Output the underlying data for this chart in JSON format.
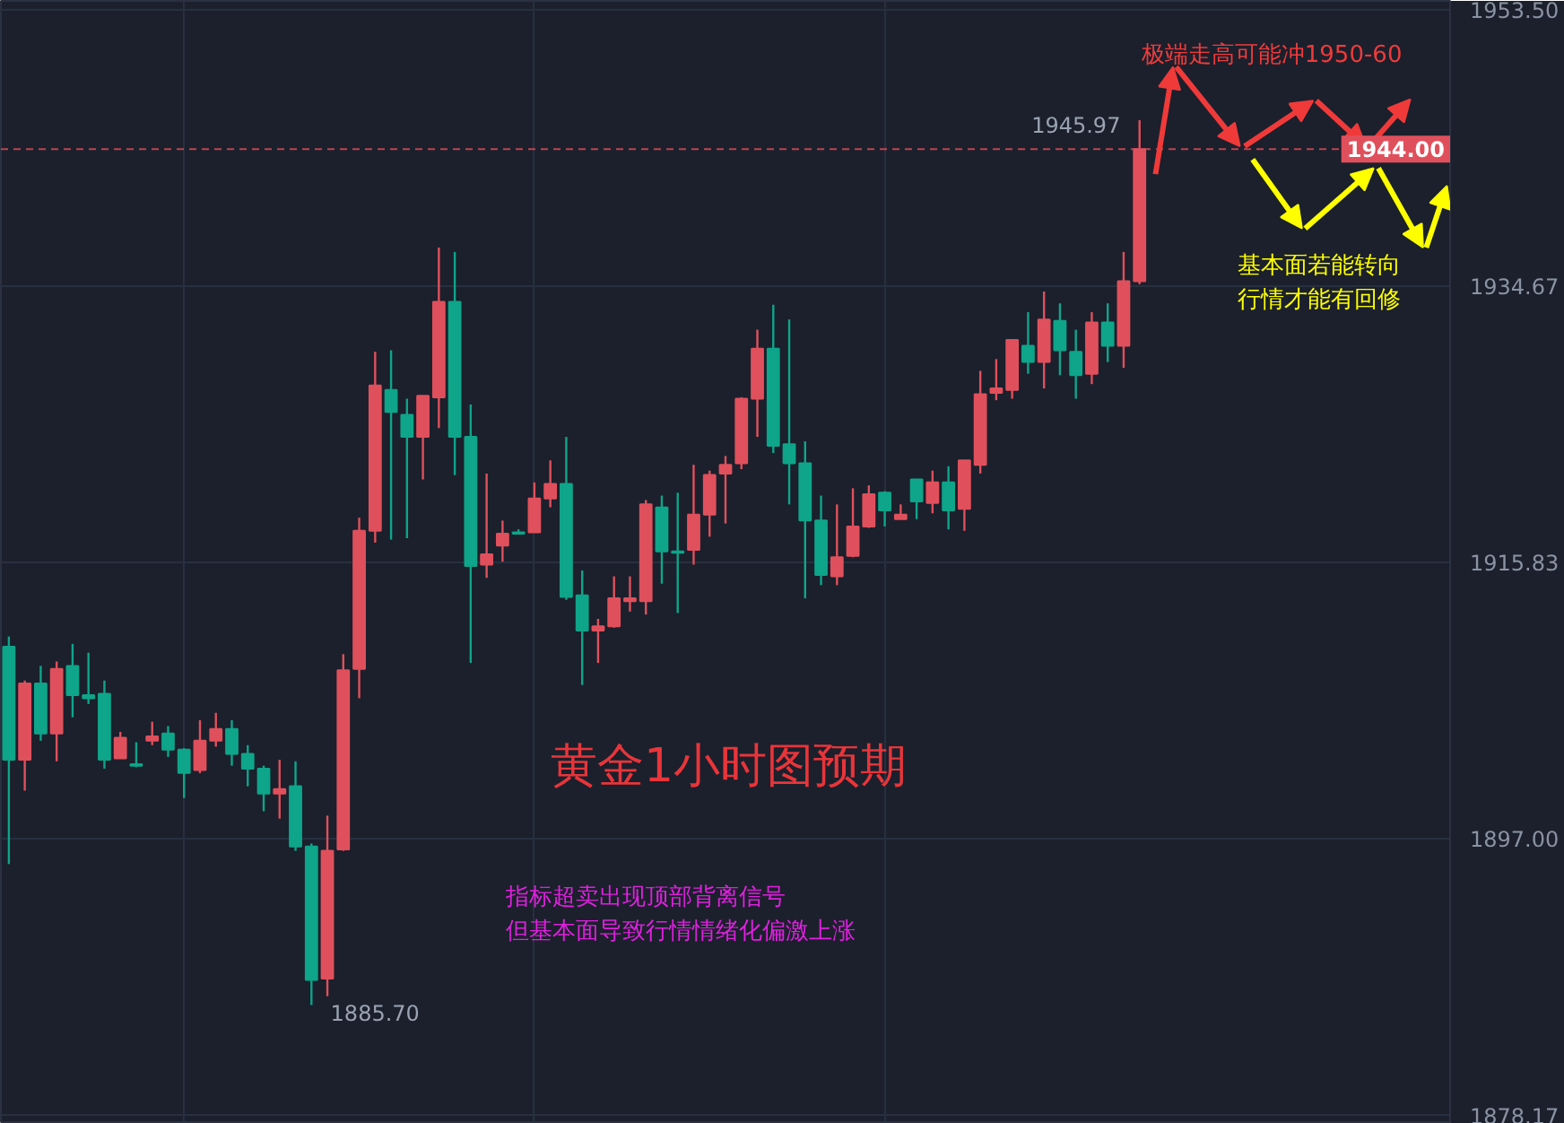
{
  "chart_data": {
    "type": "candlestick",
    "title": "黄金1小时图预期",
    "categories": [
      null,
      null,
      null,
      null,
      null,
      null,
      null,
      null,
      null,
      null,
      null,
      null,
      null,
      null,
      null,
      null,
      null,
      null,
      null,
      null,
      null,
      null,
      null,
      null,
      null,
      null,
      null,
      null,
      null,
      null,
      null,
      null,
      null,
      null,
      null,
      null,
      null,
      null,
      null,
      null,
      null,
      null,
      null,
      null,
      null,
      null,
      null,
      null,
      null,
      null,
      null,
      null,
      null,
      null,
      null,
      null,
      null,
      null,
      null,
      null,
      null,
      null,
      null,
      null,
      null,
      null,
      null,
      null,
      null,
      null,
      null,
      null,
      null,
      null,
      null,
      null,
      null,
      null,
      null,
      null,
      null,
      null,
      null,
      null,
      null,
      null,
      null,
      null,
      null,
      null,
      null
    ],
    "ohlc": [
      [
        1910.1,
        1910.8,
        1895.3,
        1902.4
      ],
      [
        1902.4,
        1907.8,
        1900.3,
        1907.6
      ],
      [
        1907.6,
        1908.8,
        1903.7,
        1904.2
      ],
      [
        1904.2,
        1909.1,
        1902.3,
        1908.6
      ],
      [
        1908.8,
        1910.3,
        1905.3,
        1906.8
      ],
      [
        1906.8,
        1909.7,
        1906.2,
        1906.6
      ],
      [
        1906.9,
        1907.8,
        1901.8,
        1902.4
      ],
      [
        1902.5,
        1904.3,
        1902.5,
        1903.9
      ],
      [
        1902.1,
        1903.6,
        1901.9,
        1902.0
      ],
      [
        1903.7,
        1905.0,
        1903.4,
        1904.0
      ],
      [
        1904.2,
        1904.7,
        1902.6,
        1903.1
      ],
      [
        1903.1,
        1903.2,
        1899.8,
        1901.5
      ],
      [
        1901.7,
        1905.1,
        1901.5,
        1903.7
      ],
      [
        1903.7,
        1905.6,
        1903.3,
        1904.5
      ],
      [
        1904.5,
        1905.1,
        1902.0,
        1902.8
      ],
      [
        1902.8,
        1903.4,
        1900.6,
        1901.8
      ],
      [
        1901.8,
        1902.0,
        1898.9,
        1900.1
      ],
      [
        1900.1,
        1902.4,
        1898.4,
        1900.4
      ],
      [
        1900.6,
        1902.3,
        1896.2,
        1896.5
      ],
      [
        1896.5,
        1896.7,
        1885.7,
        1887.4
      ],
      [
        1887.5,
        1898.6,
        1886.3,
        1896.2
      ],
      [
        1896.3,
        1909.6,
        1896.2,
        1908.5
      ],
      [
        1908.6,
        1918.9,
        1906.6,
        1918.0
      ],
      [
        1918.0,
        1930.2,
        1917.2,
        1927.9
      ],
      [
        1927.6,
        1930.3,
        1917.4,
        1926.1
      ],
      [
        1925.9,
        1927.0,
        1917.5,
        1924.4
      ],
      [
        1924.4,
        1927.2,
        1921.5,
        1927.2
      ],
      [
        1927.1,
        1937.3,
        1925.0,
        1933.6
      ],
      [
        1933.6,
        1937.0,
        1921.8,
        1924.4
      ],
      [
        1924.4,
        1926.6,
        1909.0,
        1915.6
      ],
      [
        1915.7,
        1921.9,
        1914.8,
        1916.4
      ],
      [
        1917.0,
        1918.7,
        1915.9,
        1917.8
      ],
      [
        1917.9,
        1918.1,
        1917.8,
        1917.8
      ],
      [
        1917.9,
        1921.3,
        1917.9,
        1920.2
      ],
      [
        1920.2,
        1922.8,
        1919.6,
        1921.2
      ],
      [
        1921.2,
        1924.4,
        1913.3,
        1913.5
      ],
      [
        1913.6,
        1915.3,
        1907.5,
        1911.2
      ],
      [
        1911.2,
        1912.0,
        1909.0,
        1911.5
      ],
      [
        1911.5,
        1914.9,
        1911.4,
        1913.4
      ],
      [
        1913.2,
        1914.9,
        1912.5,
        1913.4
      ],
      [
        1913.2,
        1920.1,
        1912.3,
        1919.8
      ],
      [
        1919.6,
        1920.4,
        1914.4,
        1916.6
      ],
      [
        1916.6,
        1920.6,
        1912.4,
        1916.5
      ],
      [
        1916.7,
        1922.5,
        1915.7,
        1919.1
      ],
      [
        1919.1,
        1922.1,
        1917.6,
        1921.8
      ],
      [
        1921.9,
        1923.1,
        1918.5,
        1922.5
      ],
      [
        1922.6,
        1927.1,
        1922.2,
        1927.0
      ],
      [
        1927.0,
        1931.7,
        1924.4,
        1930.4
      ],
      [
        1930.4,
        1933.4,
        1923.3,
        1923.8
      ],
      [
        1923.9,
        1932.4,
        1919.8,
        1922.6
      ],
      [
        1922.6,
        1924.1,
        1913.4,
        1918.7
      ],
      [
        1918.7,
        1920.4,
        1914.3,
        1915.0
      ],
      [
        1914.9,
        1919.8,
        1914.3,
        1916.2
      ],
      [
        1916.3,
        1920.9,
        1916.2,
        1918.3
      ],
      [
        1918.3,
        1921.1,
        1918.2,
        1920.5
      ],
      [
        1920.6,
        1920.7,
        1918.3,
        1919.4
      ],
      [
        1918.8,
        1919.8,
        1918.8,
        1919.1
      ],
      [
        1921.5,
        1921.5,
        1918.8,
        1920.0
      ],
      [
        1919.9,
        1922.1,
        1919.2,
        1921.3
      ],
      [
        1921.3,
        1922.4,
        1918.1,
        1919.4
      ],
      [
        1919.5,
        1922.8,
        1918.0,
        1922.8
      ],
      [
        1922.5,
        1928.9,
        1921.9,
        1927.3
      ],
      [
        1927.4,
        1929.7,
        1926.9,
        1927.7
      ],
      [
        1927.6,
        1931.0,
        1927.0,
        1931.0
      ],
      [
        1930.6,
        1932.9,
        1928.7,
        1929.5
      ],
      [
        1929.5,
        1934.3,
        1927.7,
        1932.4
      ],
      [
        1932.3,
        1933.5,
        1928.6,
        1930.3
      ],
      [
        1930.2,
        1931.7,
        1927.0,
        1928.6
      ],
      [
        1928.7,
        1932.9,
        1928.0,
        1932.2
      ],
      [
        1932.2,
        1933.5,
        1929.5,
        1930.6
      ],
      [
        1930.6,
        1937.0,
        1929.1,
        1935.0
      ],
      [
        1935.0,
        1945.97,
        1934.8,
        1944.0
      ],
      null,
      null,
      null,
      null,
      null,
      null,
      null,
      null,
      null,
      null,
      null,
      null,
      null,
      null,
      null,
      null,
      null,
      null,
      null
    ],
    "colors": [
      "#0ea58a",
      "#e0505c",
      "#0ea58a",
      "#e0505c",
      "#0ea58a",
      "#0ea58a",
      "#0ea58a",
      "#e0505c",
      "#0ea58a",
      "#e0505c",
      "#0ea58a",
      "#0ea58a",
      "#e0505c",
      "#e0505c",
      "#0ea58a",
      "#0ea58a",
      "#0ea58a",
      "#e0505c",
      "#0ea58a",
      "#0ea58a",
      "#e0505c",
      "#e0505c",
      "#e0505c",
      "#e0505c",
      "#0ea58a",
      "#0ea58a",
      "#e0505c",
      "#e0505c",
      "#0ea58a",
      "#0ea58a",
      "#e0505c",
      "#e0505c",
      "#0ea58a",
      "#e0505c",
      "#e0505c",
      "#0ea58a",
      "#0ea58a",
      "#e0505c",
      "#e0505c",
      "#e0505c",
      "#e0505c",
      "#0ea58a",
      "#0ea58a",
      "#e0505c",
      "#e0505c",
      "#e0505c",
      "#e0505c",
      "#e0505c",
      "#0ea58a",
      "#0ea58a",
      "#0ea58a",
      "#0ea58a",
      "#e0505c",
      "#e0505c",
      "#e0505c",
      "#0ea58a",
      "#e0505c",
      "#0ea58a",
      "#e0505c",
      "#0ea58a",
      "#e0505c",
      "#e0505c",
      "#e0505c",
      "#e0505c",
      "#0ea58a",
      "#e0505c",
      "#0ea58a",
      "#0ea58a",
      "#e0505c",
      "#0ea58a",
      "#e0505c",
      "#e0505c",
      null,
      null,
      null,
      null,
      null,
      null,
      null,
      null,
      null,
      null,
      null,
      null,
      null,
      null,
      null,
      null,
      null,
      null,
      null
    ],
    "ylim": [
      1877.6,
      1954.1
    ],
    "yticks": [
      {
        "value": 1953.5,
        "label": "1953.50"
      },
      {
        "value": 1934.67,
        "label": "1934.67"
      },
      {
        "value": 1915.83,
        "label": "1915.83"
      },
      {
        "value": 1897.0,
        "label": "1897.00"
      },
      {
        "value": 1878.17,
        "label": "1878.17"
      }
    ],
    "tick_labels": "y",
    "grid": true,
    "ref_lines": [
      {
        "axis": "y",
        "value": 1944.0,
        "label": "1944.00",
        "color": "#e0505c",
        "line_style": "dashed"
      }
    ],
    "annotations": [
      "1945.97",
      "1885.70",
      "极端走高可能冲1950-60",
      "基本面若能转向行情才能有回修",
      "指标超卖出现顶部背离信号但基本面导致行情情绪化偏激上涨"
    ]
  }
}
